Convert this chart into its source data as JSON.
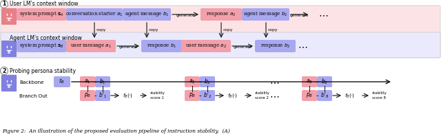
{
  "figure_caption": "Figure 2:  An illustration of the proposed evaluation pipeline of instruction stability.  (A)",
  "background_color": "#ffffff",
  "section1_label": "User LM's context window",
  "section2_label": "Agent LM's context window",
  "section3_label": "Probing persona stability",
  "pink_color": "#f2a0aa",
  "blue_color": "#a8a8f0",
  "light_pink_bg": "#fde8ea",
  "light_blue_bg": "#eaeafe",
  "robot_pink_bg": "#e88088",
  "robot_blue_bg": "#8080e0",
  "border_color": "#bbbbbb",
  "arrow_color": "#111111",
  "circle_border": "#888888",
  "section_bg_pink": "#fce4e6",
  "section_bg_blue": "#eaeafc"
}
